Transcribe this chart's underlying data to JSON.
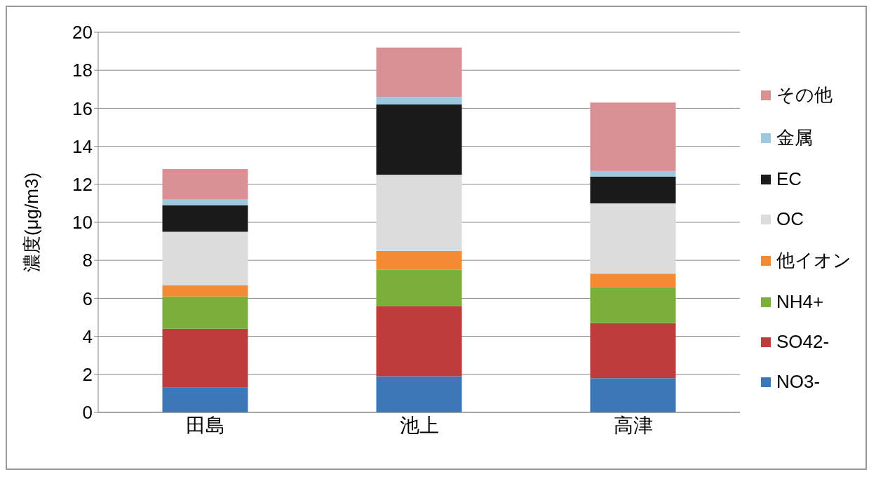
{
  "chart_data": {
    "type": "bar",
    "stacked": true,
    "ylabel": "濃度(μg/m3)",
    "categories": [
      "田島",
      "池上",
      "高津"
    ],
    "ylim": [
      0,
      20
    ],
    "yticks": [
      0,
      2,
      4,
      6,
      8,
      10,
      12,
      14,
      16,
      18,
      20
    ],
    "grid": "y",
    "legend": "right",
    "series": [
      {
        "name": "NO3-",
        "color": "#3c78b8",
        "values": [
          1.3,
          1.9,
          1.8
        ]
      },
      {
        "name": "SO42-",
        "color": "#be3c3c",
        "values": [
          3.1,
          3.7,
          2.9
        ]
      },
      {
        "name": "NH4+",
        "color": "#7cae3a",
        "values": [
          1.7,
          1.9,
          1.9
        ]
      },
      {
        "name": "他イオン",
        "color": "#f48a32",
        "values": [
          0.6,
          1.0,
          0.7
        ]
      },
      {
        "name": "OC",
        "color": "#dcdcdc",
        "values": [
          2.8,
          4.0,
          3.7
        ]
      },
      {
        "name": "EC",
        "color": "#1a1a1a",
        "values": [
          1.4,
          3.7,
          1.4
        ]
      },
      {
        "name": "金属",
        "color": "#9ec8e0",
        "values": [
          0.3,
          0.4,
          0.3
        ]
      },
      {
        "name": "その他",
        "color": "#d99094",
        "values": [
          1.6,
          2.6,
          3.6
        ]
      }
    ]
  }
}
